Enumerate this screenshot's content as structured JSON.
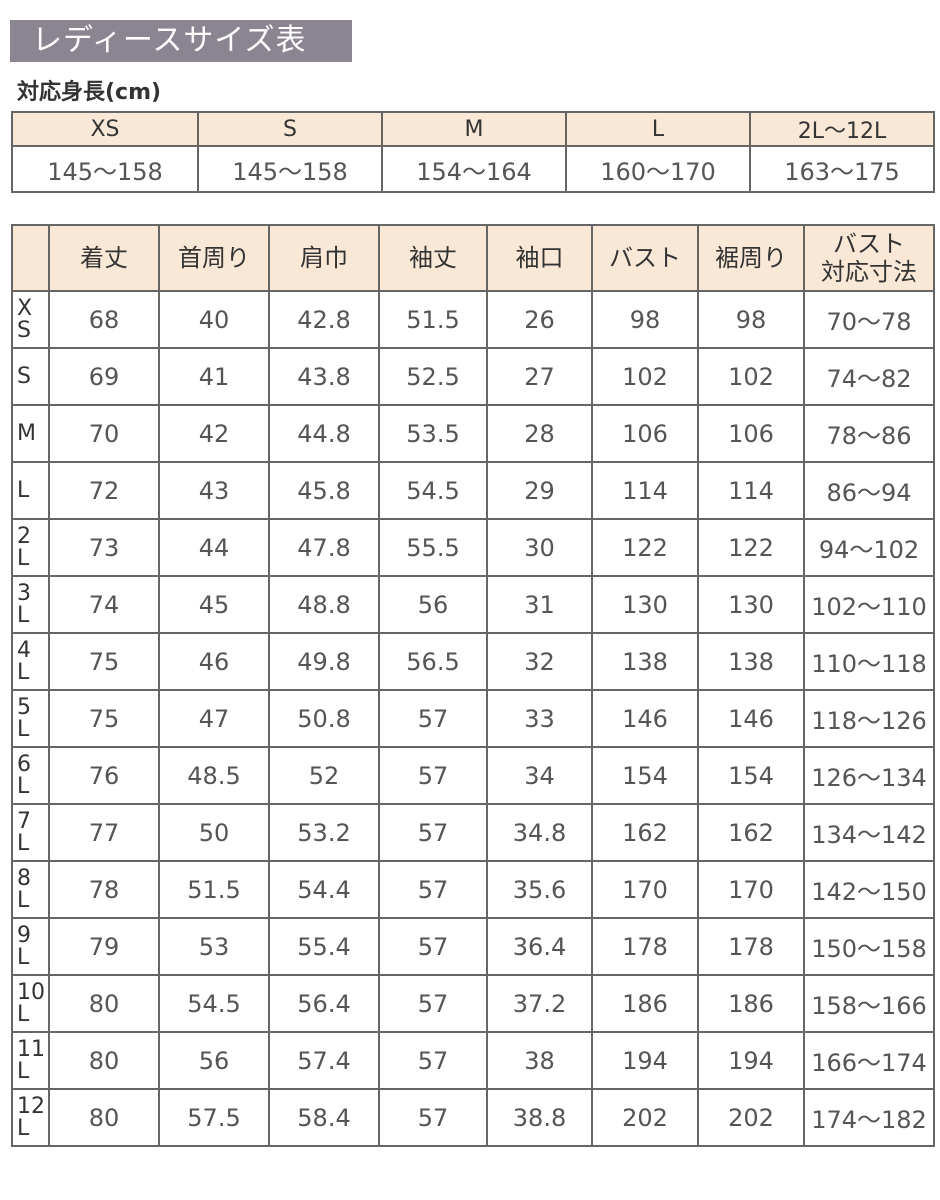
{
  "title": "レディースサイズ表",
  "height_section": {
    "label": "対応身長(cm)",
    "sizes": [
      "XS",
      "S",
      "M",
      "L",
      "2L〜12L"
    ],
    "ranges": [
      "145〜158",
      "145〜158",
      "154〜164",
      "160〜170",
      "163〜175"
    ]
  },
  "size_table": {
    "headers": [
      "",
      "着丈",
      "首周り",
      "肩巾",
      "袖丈",
      "袖口",
      "バスト",
      "裾周り",
      [
        "バスト",
        "対応寸法"
      ]
    ],
    "rows": [
      {
        "label": [
          "X",
          "S"
        ],
        "values": [
          "68",
          "40",
          "42.8",
          "51.5",
          "26",
          "98",
          "98",
          "70〜78"
        ]
      },
      {
        "label": [
          "S"
        ],
        "values": [
          "69",
          "41",
          "43.8",
          "52.5",
          "27",
          "102",
          "102",
          "74〜82"
        ]
      },
      {
        "label": [
          "M"
        ],
        "values": [
          "70",
          "42",
          "44.8",
          "53.5",
          "28",
          "106",
          "106",
          "78〜86"
        ]
      },
      {
        "label": [
          "L"
        ],
        "values": [
          "72",
          "43",
          "45.8",
          "54.5",
          "29",
          "114",
          "114",
          "86〜94"
        ]
      },
      {
        "label": [
          "2",
          "L"
        ],
        "values": [
          "73",
          "44",
          "47.8",
          "55.5",
          "30",
          "122",
          "122",
          "94〜102"
        ]
      },
      {
        "label": [
          "3",
          "L"
        ],
        "values": [
          "74",
          "45",
          "48.8",
          "56",
          "31",
          "130",
          "130",
          "102〜110"
        ]
      },
      {
        "label": [
          "4",
          "L"
        ],
        "values": [
          "75",
          "46",
          "49.8",
          "56.5",
          "32",
          "138",
          "138",
          "110〜118"
        ]
      },
      {
        "label": [
          "5",
          "L"
        ],
        "values": [
          "75",
          "47",
          "50.8",
          "57",
          "33",
          "146",
          "146",
          "118〜126"
        ]
      },
      {
        "label": [
          "6",
          "L"
        ],
        "values": [
          "76",
          "48.5",
          "52",
          "57",
          "34",
          "154",
          "154",
          "126〜134"
        ]
      },
      {
        "label": [
          "7",
          "L"
        ],
        "values": [
          "77",
          "50",
          "53.2",
          "57",
          "34.8",
          "162",
          "162",
          "134〜142"
        ]
      },
      {
        "label": [
          "8",
          "L"
        ],
        "values": [
          "78",
          "51.5",
          "54.4",
          "57",
          "35.6",
          "170",
          "170",
          "142〜150"
        ]
      },
      {
        "label": [
          "9",
          "L"
        ],
        "values": [
          "79",
          "53",
          "55.4",
          "57",
          "36.4",
          "178",
          "178",
          "150〜158"
        ]
      },
      {
        "label": [
          "10",
          "L"
        ],
        "values": [
          "80",
          "54.5",
          "56.4",
          "57",
          "37.2",
          "186",
          "186",
          "158〜166"
        ]
      },
      {
        "label": [
          "11",
          "L"
        ],
        "values": [
          "80",
          "56",
          "57.4",
          "57",
          "38",
          "194",
          "194",
          "166〜174"
        ]
      },
      {
        "label": [
          "12",
          "L"
        ],
        "values": [
          "80",
          "57.5",
          "58.4",
          "57",
          "38.8",
          "202",
          "202",
          "174〜182"
        ]
      }
    ]
  },
  "colors": {
    "title_bg": "#8a8590",
    "header_bg": "#f9e8d6",
    "border": "#666666"
  }
}
